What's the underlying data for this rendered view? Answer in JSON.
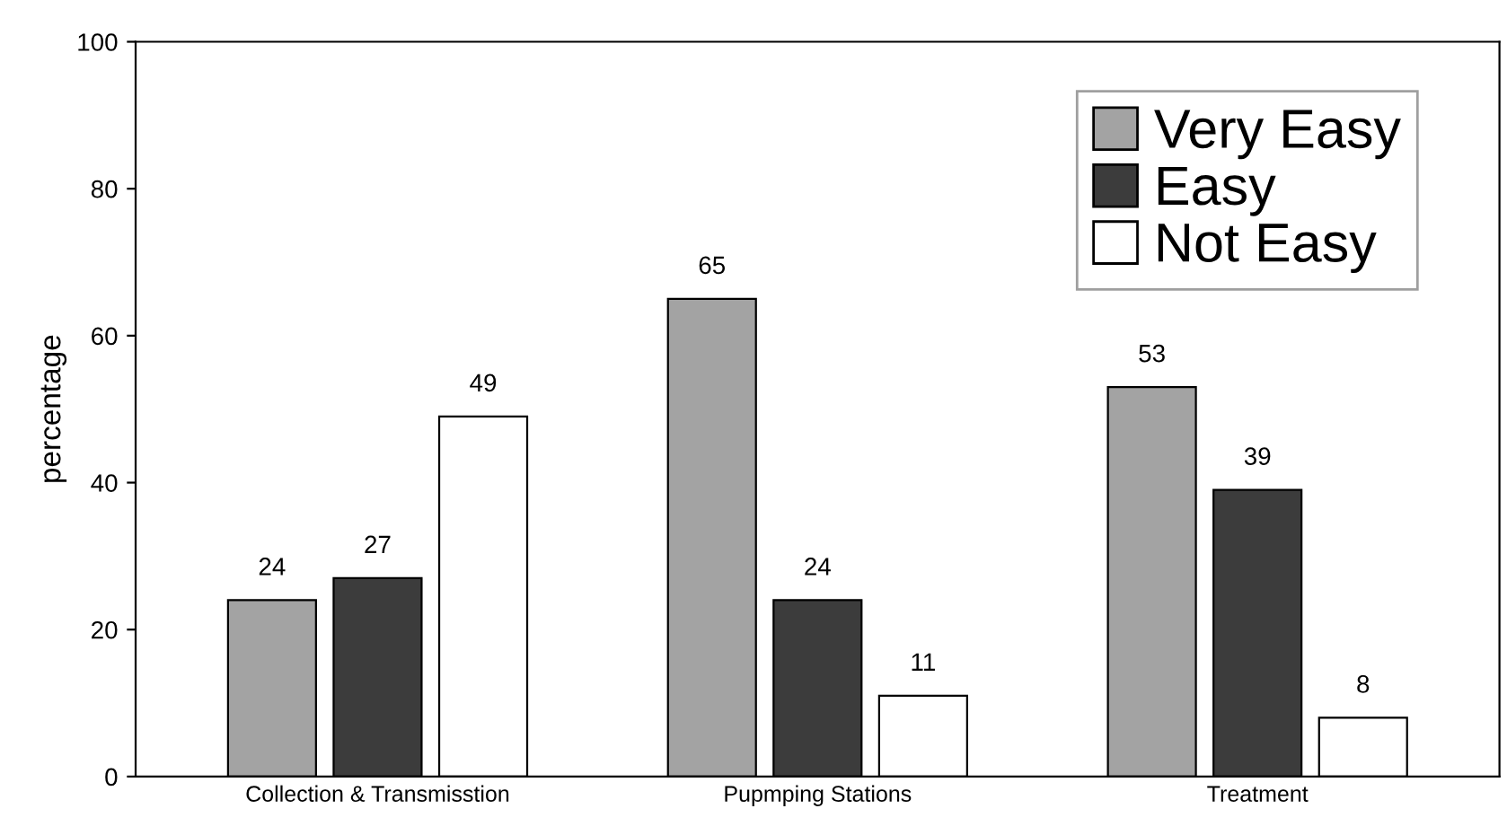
{
  "chart_data": {
    "type": "bar",
    "ylabel": "percentage",
    "categories": [
      "Collection & Transmisstion",
      "Pupmping Stations",
      "Treatment"
    ],
    "series": [
      {
        "name": "Very Easy",
        "color": "#a3a3a3",
        "values": [
          24,
          65,
          53
        ]
      },
      {
        "name": "Easy",
        "color": "#3c3c3c",
        "values": [
          27,
          24,
          39
        ]
      },
      {
        "name": "Not Easy",
        "color": "#ffffff",
        "values": [
          49,
          11,
          8
        ]
      }
    ],
    "ylim": [
      0,
      100
    ],
    "yticks": [
      0,
      20,
      40,
      60,
      80,
      100
    ],
    "data_labels": true,
    "legend": "top right",
    "grid": false
  }
}
